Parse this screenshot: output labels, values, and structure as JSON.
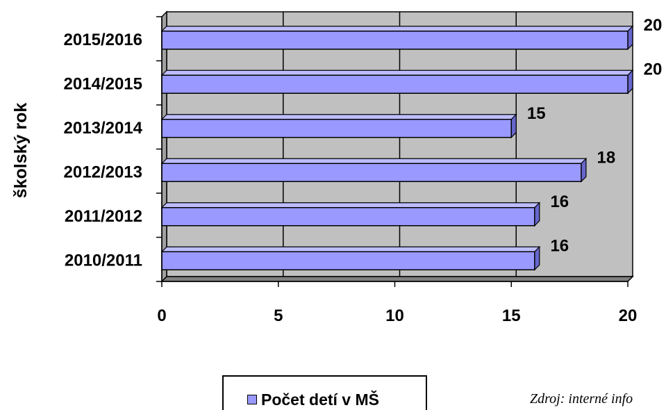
{
  "chart_data": {
    "type": "bar",
    "orientation": "horizontal",
    "style": "3d",
    "categories": [
      "2010/2011",
      "2011/2012",
      "2012/2013",
      "2013/2014",
      "2014/2015",
      "2015/2016"
    ],
    "series": [
      {
        "name": "Počet detí v MŠ",
        "values": [
          16,
          16,
          18,
          15,
          20,
          20
        ],
        "color": "#9999FF"
      }
    ],
    "data_labels": [
      "16",
      "16",
      "18",
      "15",
      "20",
      "20"
    ],
    "xlim": [
      0,
      20
    ],
    "x_ticks": [
      "0",
      "5",
      "10",
      "15",
      "20"
    ],
    "ylabel": "školský rok",
    "xlabel": "",
    "title": "",
    "grid": true,
    "legend_position": "bottom",
    "wall_color": "#C0C0C0"
  },
  "source_note": "Zdroj: interné info"
}
